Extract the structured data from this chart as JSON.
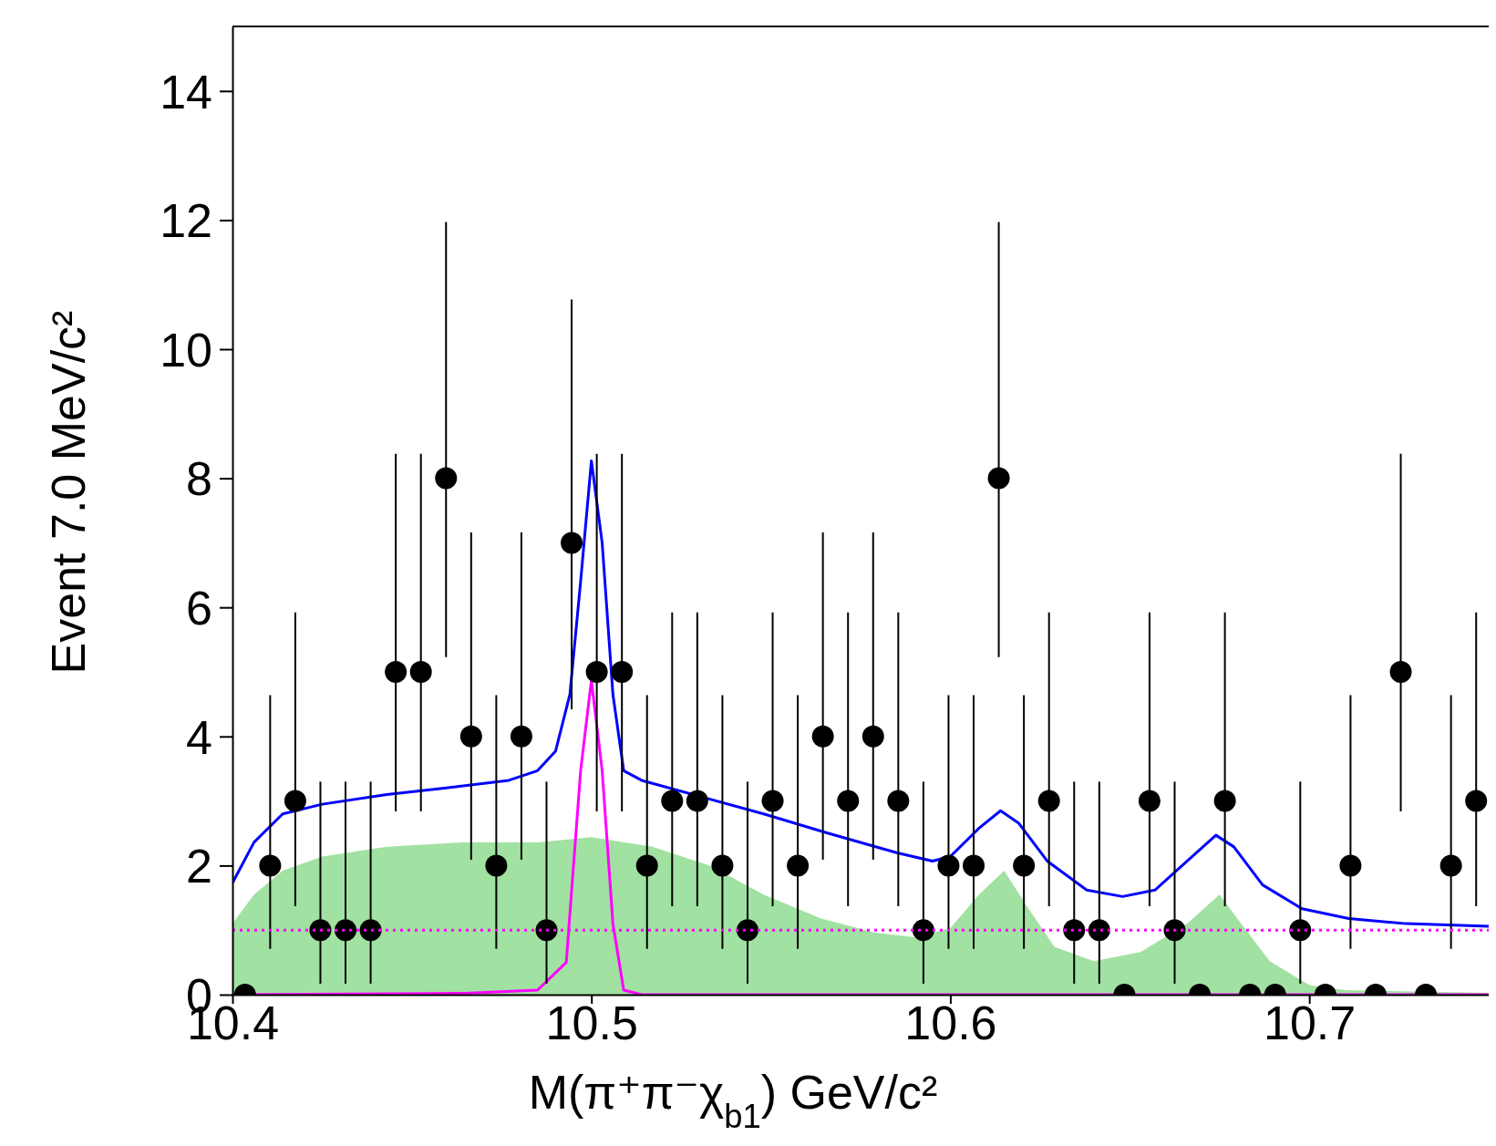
{
  "chart_data": {
    "type": "scatter",
    "xlabel": "M(π⁺π⁻χ$_{b1}$) GeV/c²",
    "ylabel": "Event 7.0 MeV/c²",
    "xlim": [
      10.4,
      10.75
    ],
    "xticks": [
      10.4,
      10.5,
      10.6,
      10.7
    ],
    "ylim": [
      0,
      15
    ],
    "yticks": [
      0,
      2,
      4,
      6,
      8,
      10,
      12,
      14
    ],
    "grid": false,
    "ref_lines": [
      {
        "axis": "y",
        "value": 1,
        "color": "#ff00ff",
        "line_style": "dotted"
      }
    ],
    "series": [
      {
        "type": "area",
        "color": "#90dc90",
        "x": [
          10.4,
          10.406,
          10.414,
          10.425,
          10.443,
          10.464,
          10.485,
          10.5,
          10.517,
          10.533,
          10.548,
          10.564,
          10.579,
          10.59,
          10.6,
          10.608,
          10.615,
          10.621,
          10.629,
          10.64,
          10.653,
          10.666,
          10.675,
          10.681,
          10.689,
          10.7,
          10.71,
          10.75
        ],
        "values": [
          1.1,
          1.55,
          1.92,
          2.14,
          2.29,
          2.36,
          2.36,
          2.44,
          2.29,
          2.0,
          1.55,
          1.18,
          0.96,
          0.89,
          1.03,
          1.55,
          1.92,
          1.4,
          0.74,
          0.52,
          0.66,
          1.1,
          1.55,
          1.1,
          0.52,
          0.15,
          0.07,
          0.03
        ]
      },
      {
        "type": "line",
        "color": "#ff00ff",
        "x": [
          10.4,
          10.465,
          10.485,
          10.493,
          10.497,
          10.5,
          10.503,
          10.506,
          10.509,
          10.514,
          10.75
        ],
        "values": [
          0,
          0.02,
          0.07,
          0.5,
          3.47,
          4.87,
          3.47,
          1.1,
          0.07,
          0,
          0
        ]
      },
      {
        "type": "line",
        "color": "#0000ff",
        "x": [
          10.4,
          10.406,
          10.414,
          10.425,
          10.443,
          10.459,
          10.477,
          10.485,
          10.49,
          10.494,
          10.497,
          10.5,
          10.503,
          10.506,
          10.509,
          10.514,
          10.548,
          10.566,
          10.585,
          10.595,
          10.6,
          10.608,
          10.614,
          10.619,
          10.627,
          10.638,
          10.648,
          10.657,
          10.666,
          10.674,
          10.679,
          10.687,
          10.698,
          10.711,
          10.727,
          10.75
        ],
        "values": [
          1.73,
          2.36,
          2.8,
          2.95,
          3.1,
          3.2,
          3.32,
          3.47,
          3.77,
          4.65,
          6.4,
          8.27,
          7.0,
          4.65,
          3.47,
          3.32,
          2.8,
          2.5,
          2.2,
          2.07,
          2.14,
          2.58,
          2.85,
          2.66,
          2.07,
          1.62,
          1.52,
          1.62,
          2.07,
          2.47,
          2.29,
          1.7,
          1.33,
          1.18,
          1.1,
          1.06
        ]
      },
      {
        "color": "#000000",
        "marker": "circle",
        "x": [
          10.4035,
          10.4105,
          10.4175,
          10.4245,
          10.4315,
          10.4385,
          10.4455,
          10.4525,
          10.4595,
          10.4665,
          10.4735,
          10.4805,
          10.4875,
          10.4945,
          10.5015,
          10.5085,
          10.5155,
          10.5225,
          10.5295,
          10.5365,
          10.5435,
          10.5505,
          10.5575,
          10.5645,
          10.5715,
          10.5785,
          10.5855,
          10.5925,
          10.5995,
          10.6065,
          10.6135,
          10.6205,
          10.6275,
          10.6345,
          10.6415,
          10.6485,
          10.6555,
          10.6625,
          10.6695,
          10.6765,
          10.6835,
          10.6905,
          10.6975,
          10.7045,
          10.7115,
          10.7185,
          10.7255,
          10.7325,
          10.7395,
          10.7465
        ],
        "values": [
          0,
          2,
          3,
          1,
          1,
          1,
          5,
          5,
          8,
          4,
          2,
          4,
          1,
          7,
          5,
          5,
          2,
          3,
          3,
          2,
          1,
          3,
          2,
          4,
          3,
          4,
          3,
          1,
          2,
          2,
          8,
          2,
          3,
          1,
          1,
          0,
          3,
          1,
          0,
          3,
          0,
          0,
          1,
          0,
          2,
          0,
          5,
          0,
          2,
          3
        ],
        "errors": [
          null,
          [
            0.71,
            4.64
          ],
          [
            1.37,
            5.92
          ],
          [
            0.17,
            3.3
          ],
          [
            0.17,
            3.3
          ],
          [
            0.17,
            3.3
          ],
          [
            2.84,
            8.38
          ],
          [
            2.84,
            8.38
          ],
          [
            5.23,
            11.97
          ],
          [
            2.09,
            7.16
          ],
          [
            0.71,
            4.64
          ],
          [
            2.09,
            7.16
          ],
          [
            0.17,
            3.3
          ],
          [
            4.42,
            10.77
          ],
          [
            2.84,
            8.38
          ],
          [
            2.84,
            8.38
          ],
          [
            0.71,
            4.64
          ],
          [
            1.37,
            5.92
          ],
          [
            1.37,
            5.92
          ],
          [
            0.71,
            4.64
          ],
          [
            0.17,
            3.3
          ],
          [
            1.37,
            5.92
          ],
          [
            0.71,
            4.64
          ],
          [
            2.09,
            7.16
          ],
          [
            1.37,
            5.92
          ],
          [
            2.09,
            7.16
          ],
          [
            1.37,
            5.92
          ],
          [
            0.17,
            3.3
          ],
          [
            0.71,
            4.64
          ],
          [
            0.71,
            4.64
          ],
          [
            5.23,
            11.97
          ],
          [
            0.71,
            4.64
          ],
          [
            1.37,
            5.92
          ],
          [
            0.17,
            3.3
          ],
          [
            0.17,
            3.3
          ],
          null,
          [
            1.37,
            5.92
          ],
          [
            0.17,
            3.3
          ],
          null,
          [
            1.37,
            5.92
          ],
          null,
          null,
          [
            0.17,
            3.3
          ],
          null,
          [
            0.71,
            4.64
          ],
          null,
          [
            2.84,
            8.38
          ],
          null,
          [
            0.71,
            4.64
          ],
          [
            1.37,
            5.92
          ]
        ]
      }
    ]
  }
}
